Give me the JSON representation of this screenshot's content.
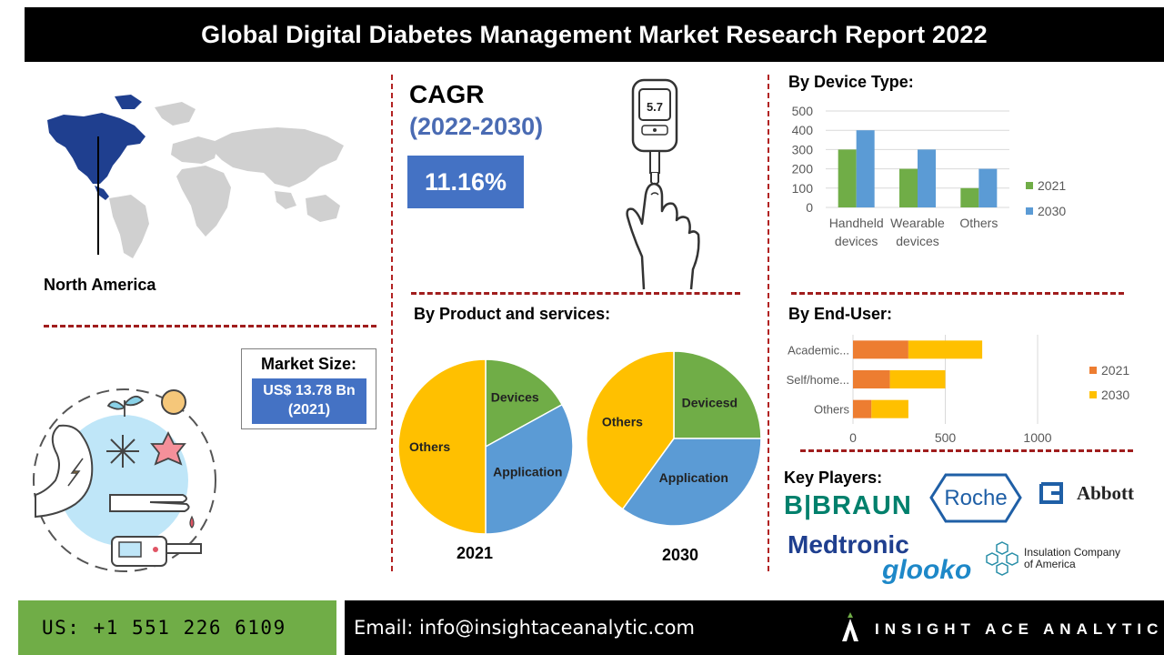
{
  "banner": {
    "title": "Global Digital Diabetes Management Market Research Report 2022"
  },
  "region": {
    "label": "North America"
  },
  "cagr": {
    "title": "CAGR",
    "years": "(2022-2030)",
    "value": "11.16%"
  },
  "glucometer": {
    "reading": "5.7"
  },
  "market_size": {
    "title": "Market Size:",
    "value_line1": "US$ 13.78 Bn",
    "value_line2": "(2021)"
  },
  "device_type": {
    "title": "By Device Type:"
  },
  "products": {
    "title": "By Product and services:"
  },
  "end_user": {
    "title": "By End-User:"
  },
  "key_players": {
    "title": "Key Players:",
    "logos": [
      "B|BRAUN",
      "Roche",
      "Abbott",
      "Medtronic",
      "glooko",
      "Insulation Company",
      "of America"
    ]
  },
  "footer": {
    "phone": "US: +1 551 226 6109",
    "email": "Email: info@insightaceanalytic.com",
    "brand": "INSIGHT ACE ANALYTIC"
  },
  "colors": {
    "green": "#70ad47",
    "blue": "#5b9bd5",
    "orange": "#ed7d31",
    "yellow": "#ffc000",
    "accent": "#4472c4",
    "divider": "#a01d1d"
  },
  "chart_data": [
    {
      "type": "bar",
      "title": "By Device Type:",
      "categories": [
        "Handheld devices",
        "Wearable devices",
        "Others"
      ],
      "category_lines": [
        [
          "Handheld",
          "devices"
        ],
        [
          "Wearable",
          "devices"
        ],
        [
          "Others"
        ]
      ],
      "series": [
        {
          "name": "2021",
          "color": "#70ad47",
          "values": [
            300,
            200,
            100
          ]
        },
        {
          "name": "2030",
          "color": "#5b9bd5",
          "values": [
            400,
            300,
            200
          ]
        }
      ],
      "ylim": [
        0,
        500
      ],
      "yticks": [
        "0",
        "100",
        "200",
        "300",
        "400",
        "500"
      ],
      "grid": true,
      "legend": "right"
    },
    {
      "type": "pie",
      "title": "2021",
      "slices": [
        {
          "label": "Devices",
          "value": 17,
          "color": "#70ad47"
        },
        {
          "label": "Application",
          "value": 33,
          "color": "#5b9bd5"
        },
        {
          "label": "Others",
          "value": 50,
          "color": "#ffc000"
        }
      ]
    },
    {
      "type": "pie",
      "title": "2030",
      "slices": [
        {
          "label": "Devicesd",
          "value": 25,
          "color": "#70ad47"
        },
        {
          "label": "Application",
          "value": 35,
          "color": "#5b9bd5"
        },
        {
          "label": "Others",
          "value": 40,
          "color": "#ffc000"
        }
      ]
    },
    {
      "type": "bar",
      "orientation": "horizontal",
      "stacked": true,
      "title": "By End-User:",
      "categories": [
        "Academic...",
        "Self/home...",
        "Others"
      ],
      "series": [
        {
          "name": "2021",
          "color": "#ed7d31",
          "values": [
            300,
            200,
            100
          ]
        },
        {
          "name": "2030",
          "color": "#ffc000",
          "values": [
            400,
            300,
            200
          ]
        }
      ],
      "xlim": [
        0,
        1000
      ],
      "xticks": [
        "0",
        "500",
        "1000"
      ],
      "grid": true,
      "legend": "right"
    }
  ]
}
